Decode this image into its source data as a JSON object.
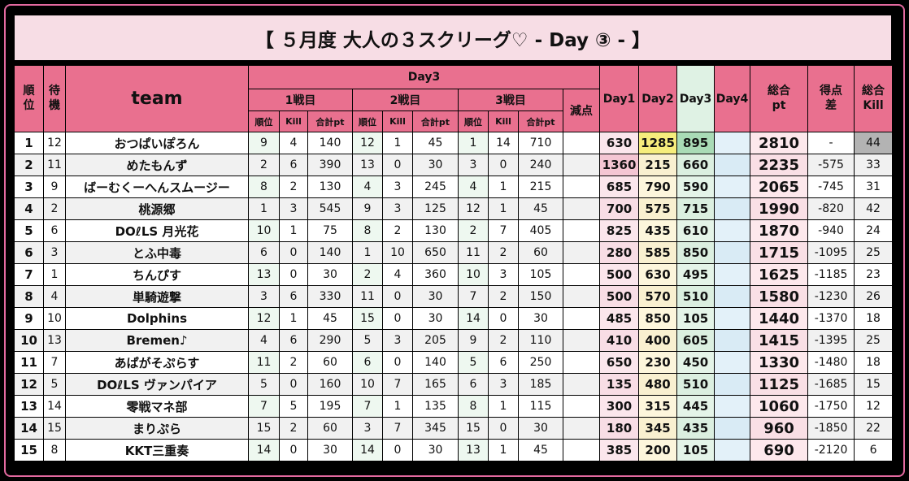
{
  "title": "【 ５月度 大人の３スクリーグ♡ - Day ③ - 】",
  "header": {
    "rank": "順位",
    "wait": "待機",
    "team": "team",
    "group": "Day3",
    "matches": [
      "1戦目",
      "2戦目",
      "3戦目"
    ],
    "sub": [
      "順位",
      "Kill",
      "合計pt"
    ],
    "penalty": "減点",
    "days": [
      "Day1",
      "Day2",
      "Day3",
      "Day4"
    ],
    "total": "総合pt",
    "diff": "得点差",
    "kill": "総合Kill"
  },
  "rows": [
    [
      1,
      12,
      "おつぱいぽろん",
      9,
      4,
      140,
      12,
      1,
      45,
      1,
      14,
      710,
      630,
      1285,
      895,
      2810,
      "-",
      44
    ],
    [
      2,
      11,
      "めたもんず",
      2,
      6,
      390,
      13,
      0,
      30,
      3,
      0,
      240,
      1360,
      215,
      660,
      2235,
      -575,
      33
    ],
    [
      3,
      9,
      "ばーむくーへんスムージー",
      8,
      2,
      130,
      4,
      3,
      245,
      4,
      1,
      215,
      685,
      790,
      590,
      2065,
      -745,
      31
    ],
    [
      4,
      2,
      "桃源郷",
      1,
      3,
      545,
      9,
      3,
      125,
      12,
      1,
      45,
      700,
      575,
      715,
      1990,
      -820,
      42
    ],
    [
      5,
      6,
      "DOℓLS 月光花",
      10,
      1,
      75,
      8,
      2,
      130,
      2,
      7,
      405,
      825,
      435,
      610,
      1870,
      -940,
      24
    ],
    [
      6,
      3,
      "とふ中毒",
      6,
      0,
      140,
      1,
      10,
      650,
      11,
      2,
      60,
      280,
      585,
      850,
      1715,
      -1095,
      25
    ],
    [
      7,
      1,
      "ちんぴす",
      13,
      0,
      30,
      2,
      4,
      360,
      10,
      3,
      105,
      500,
      630,
      495,
      1625,
      -1185,
      23
    ],
    [
      8,
      4,
      "単騎遊撃",
      3,
      6,
      330,
      11,
      0,
      30,
      7,
      2,
      150,
      500,
      570,
      510,
      1580,
      -1230,
      26
    ],
    [
      9,
      10,
      "Dolphins",
      12,
      1,
      45,
      15,
      0,
      30,
      14,
      0,
      30,
      485,
      850,
      105,
      1440,
      -1370,
      18
    ],
    [
      10,
      13,
      "Bremen♪",
      4,
      6,
      290,
      5,
      3,
      205,
      9,
      2,
      110,
      410,
      400,
      605,
      1415,
      -1395,
      25
    ],
    [
      11,
      7,
      "あぱがそぷらす",
      11,
      2,
      60,
      6,
      0,
      140,
      5,
      6,
      250,
      650,
      230,
      450,
      1330,
      -1480,
      18
    ],
    [
      12,
      5,
      "DOℓLS ヴァンパイア",
      5,
      0,
      160,
      10,
      7,
      165,
      6,
      3,
      185,
      135,
      480,
      510,
      1125,
      -1685,
      15
    ],
    [
      13,
      14,
      "零戦マネ部",
      7,
      5,
      195,
      7,
      1,
      135,
      8,
      1,
      115,
      300,
      315,
      445,
      1060,
      -1750,
      12
    ],
    [
      14,
      15,
      "まりぷら",
      15,
      2,
      60,
      3,
      7,
      345,
      15,
      0,
      30,
      180,
      345,
      435,
      960,
      -1850,
      22
    ],
    [
      15,
      8,
      "KKT三重奏",
      14,
      0,
      30,
      14,
      0,
      30,
      13,
      1,
      45,
      385,
      200,
      105,
      690,
      -2120,
      6
    ]
  ]
}
